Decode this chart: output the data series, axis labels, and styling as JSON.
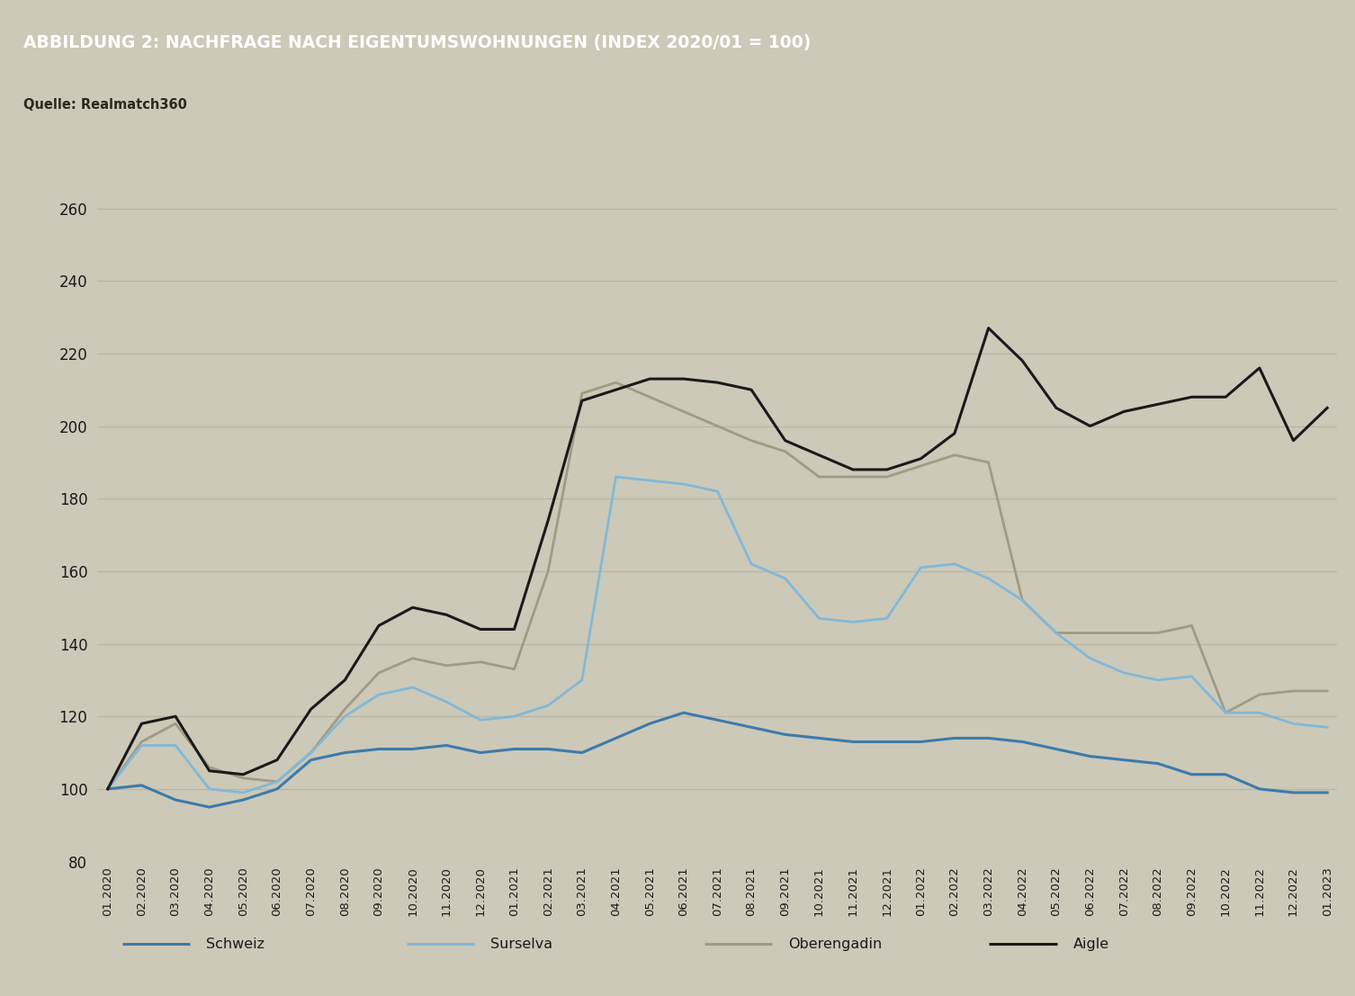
{
  "title": "ABBILDUNG 2: NACHFRAGE NACH EIGENTUMSWOHNUNGEN (INDEX 2020/01 = 100)",
  "subtitle": "Quelle: Realmatch360",
  "header_bg_color": "#8b8868",
  "chart_bg_color": "#ccc9b8",
  "outer_bg_color": "#ccc9b8",
  "title_color": "#ffffff",
  "subtitle_color": "#2a2a1a",
  "grid_color": "#b8b5a4",
  "x_labels": [
    "01.2020",
    "02.2020",
    "03.2020",
    "04.2020",
    "05.2020",
    "06.2020",
    "07.2020",
    "08.2020",
    "09.2020",
    "10.2020",
    "11.2020",
    "12.2020",
    "01.2021",
    "02.2021",
    "03.2021",
    "04.2021",
    "05.2021",
    "06.2021",
    "07.2021",
    "08.2021",
    "09.2021",
    "10.2021",
    "11.2021",
    "12.2021",
    "01.2022",
    "02.2022",
    "03.2022",
    "04.2022",
    "05.2022",
    "06.2022",
    "07.2022",
    "08.2022",
    "09.2022",
    "10.2022",
    "11.2022",
    "12.2022",
    "01.2023"
  ],
  "schweiz": [
    100,
    101,
    97,
    95,
    97,
    100,
    108,
    110,
    111,
    111,
    112,
    110,
    111,
    111,
    110,
    114,
    118,
    121,
    119,
    117,
    115,
    114,
    113,
    113,
    113,
    114,
    114,
    113,
    111,
    109,
    108,
    107,
    104,
    104,
    100,
    99,
    99
  ],
  "surselva": [
    100,
    112,
    112,
    100,
    99,
    102,
    110,
    120,
    126,
    128,
    124,
    119,
    120,
    123,
    130,
    186,
    185,
    184,
    182,
    162,
    158,
    147,
    146,
    147,
    161,
    162,
    158,
    152,
    143,
    136,
    132,
    130,
    131,
    121,
    121,
    118,
    117
  ],
  "oberengadin": [
    100,
    113,
    118,
    106,
    103,
    102,
    110,
    122,
    132,
    136,
    134,
    135,
    133,
    160,
    209,
    212,
    208,
    204,
    200,
    196,
    193,
    186,
    186,
    186,
    189,
    192,
    190,
    152,
    143,
    143,
    143,
    143,
    145,
    121,
    126,
    127,
    127
  ],
  "aigle": [
    100,
    118,
    120,
    105,
    104,
    108,
    122,
    130,
    145,
    150,
    148,
    144,
    144,
    174,
    207,
    210,
    213,
    213,
    212,
    210,
    196,
    192,
    188,
    188,
    191,
    198,
    227,
    218,
    205,
    200,
    204,
    206,
    208,
    208,
    216,
    196,
    205
  ],
  "schweiz_color": "#3d7aab",
  "surselva_color": "#82b8d8",
  "oberengadin_color": "#a09b85",
  "aigle_color": "#1a1a1a",
  "ylim": [
    80,
    268
  ],
  "yticks": [
    80,
    100,
    120,
    140,
    160,
    180,
    200,
    220,
    240,
    260
  ],
  "legend_labels": [
    "Schweiz",
    "Surselva",
    "Oberengadin",
    "Aigle"
  ]
}
